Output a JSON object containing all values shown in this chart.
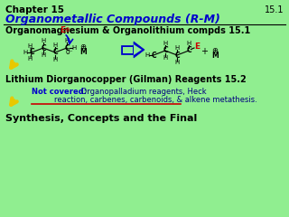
{
  "bg_color": "#90EE90",
  "title_chapter": "Chapter 15",
  "title_main": "Organometallic Compounds (R-M)",
  "slide_number": "15.1",
  "line1": "Organomagnesium & Organolithium compds 15.1",
  "line2": "Lithium Diorganocopper (Gilman) Reagents 15.2",
  "not_covered_bold": "Not covered:",
  "not_covered_rest": " Organopalladium reagents, Heck",
  "not_covered_rest2": "reaction, carbenes, carbenoids, & alkene metathesis.",
  "line_final": "Synthesis, Concepts and the Final",
  "blue": "#0000CC",
  "dark_blue": "#000080",
  "red": "#CC0000",
  "yellow": "#E8C800",
  "black": "#000000",
  "white": "#FFFFFF"
}
